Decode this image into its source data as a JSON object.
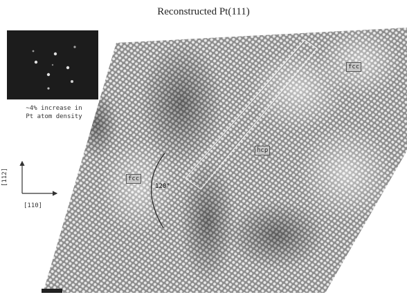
{
  "title": "Reconstructed Pt(111)",
  "inset": {
    "caption_line1": "~4% increase in",
    "caption_line2": "Pt atom density"
  },
  "axes": {
    "y_label": "[112]",
    "x_label": "[110]"
  },
  "regions": {
    "fcc_left": "fcc",
    "hcp": "hcp",
    "fcc_top_right": "fcc"
  },
  "angle": "120°"
}
